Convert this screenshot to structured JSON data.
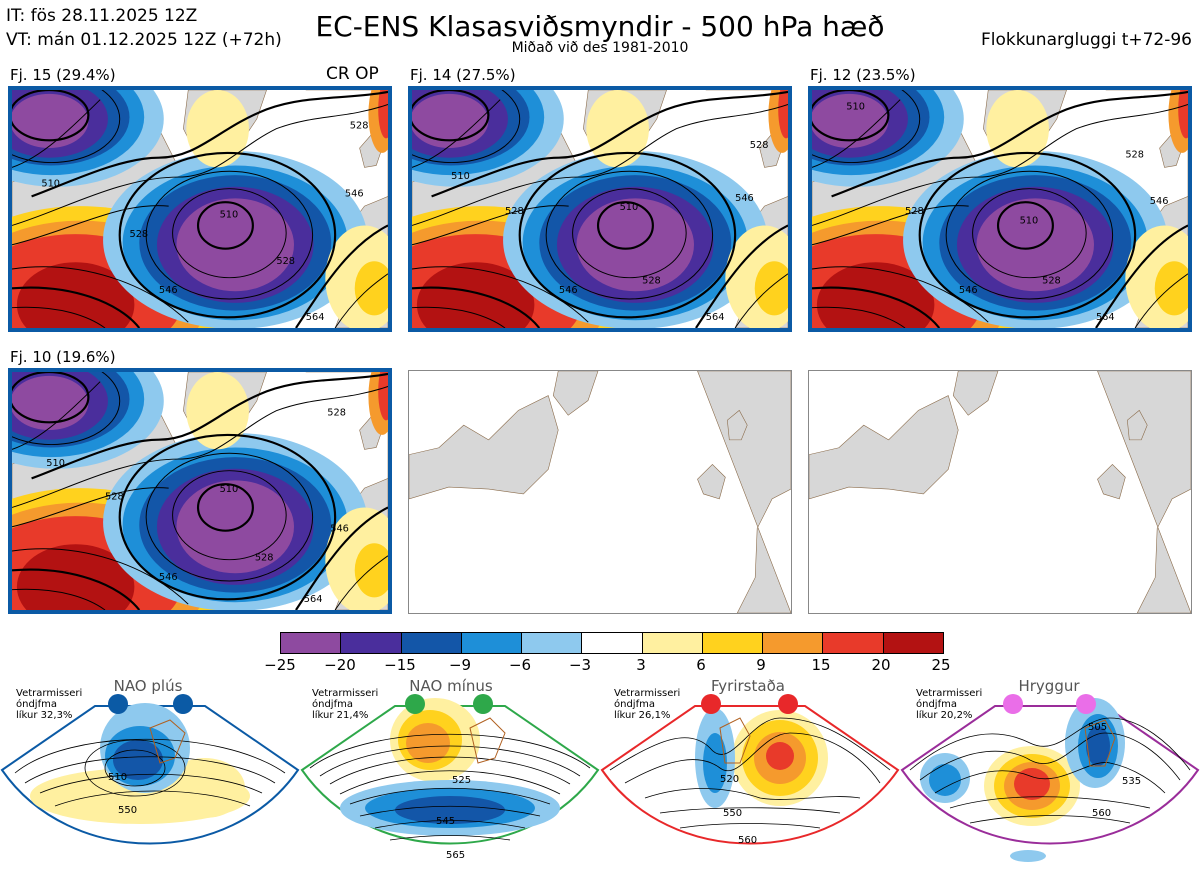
{
  "header": {
    "it_line": "IT: fös 28.11.2025 12Z",
    "vt_line": "VT: mán 01.12.2025 12Z  (+72h)",
    "title": "EC-ENS Klasasviðsmyndir - 500 hPa hæð",
    "subtitle": "Miðað við des 1981-2010",
    "window": "Flokkunargluggi t+72-96"
  },
  "panels": [
    {
      "label": "Fj. 15 (29.4%)",
      "badge": "CR OP",
      "contours": [
        "510",
        "510",
        "528",
        "546",
        "528",
        "564",
        "546",
        "528"
      ]
    },
    {
      "label": "Fj. 14 (27.5%)",
      "badge": "",
      "contours": [
        "510",
        "510",
        "528",
        "546",
        "528",
        "546",
        "564",
        "528"
      ]
    },
    {
      "label": "Fj. 12 (23.5%)",
      "badge": "",
      "contours": [
        "510",
        "510",
        "528",
        "546",
        "528",
        "564",
        "528",
        "546"
      ]
    },
    {
      "label": "Fj. 10 (19.6%)",
      "badge": "",
      "contours": [
        "510",
        "510",
        "528",
        "546",
        "528",
        "564",
        "546",
        "528"
      ]
    }
  ],
  "colorbar": {
    "colors": [
      "#8e4aa0",
      "#4a2e9c",
      "#1356a8",
      "#1e8fd8",
      "#8ec9ee",
      "#ffffff",
      "#fff0a0",
      "#ffd21e",
      "#f59a2d",
      "#e83a2a",
      "#b31212"
    ],
    "ticks": [
      "−25",
      "−20",
      "−15",
      "−9",
      "−6",
      "−3",
      "3",
      "6",
      "9",
      "15",
      "20",
      "25"
    ]
  },
  "regimes": [
    {
      "name": "NAO plús",
      "note1": "Vetrarmisseri",
      "note2": "óndjfma",
      "note3": "líkur 32,3%",
      "color": "#0b5aa5",
      "contours": [
        "510",
        "550"
      ]
    },
    {
      "name": "NAO mínus",
      "note1": "Vetrarmisseri",
      "note2": "óndjfma",
      "note3": "líkur 21,4%",
      "color": "#2ea84a",
      "contours": [
        "525",
        "545",
        "565"
      ]
    },
    {
      "name": "Fyrirstaða",
      "note1": "Vetrarmisseri",
      "note2": "óndjfma",
      "note3": "líkur 26,1%",
      "color": "#e8282a",
      "contours": [
        "520",
        "550",
        "560"
      ]
    },
    {
      "name": "Hryggur",
      "note1": "Vetrarmisseri",
      "note2": "óndjfma",
      "note3": "líkur 20,2%",
      "color": "#9a2d9a",
      "contours": [
        "505",
        "535",
        "560"
      ]
    }
  ]
}
